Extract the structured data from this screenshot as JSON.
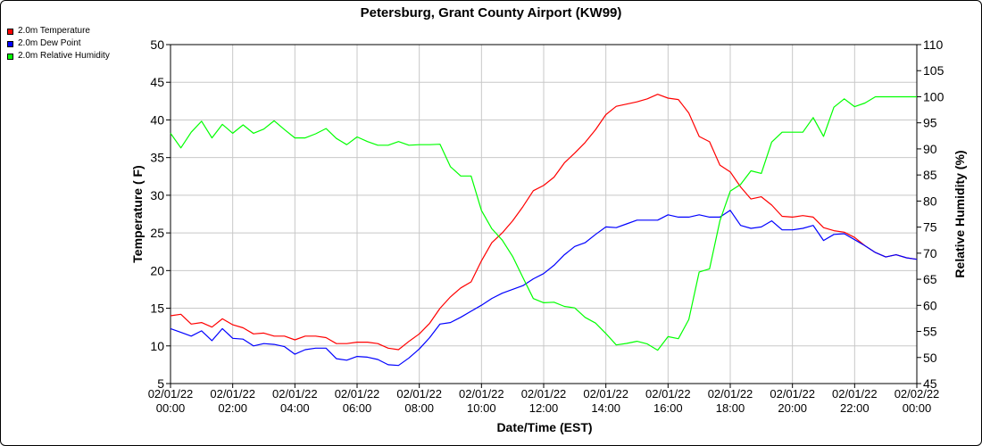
{
  "chart_data": {
    "type": "line",
    "title": "Petersburg, Grant County Airport (KW99)",
    "xlabel": "Date/Time (EST)",
    "ylabel": "Temperature ( F)",
    "y2label": "Relative Humidity (%)",
    "ylim": [
      5,
      50
    ],
    "y2lim": [
      45,
      110
    ],
    "yticks": [
      5,
      10,
      15,
      20,
      25,
      30,
      35,
      40,
      45,
      50
    ],
    "y2ticks": [
      45,
      50,
      55,
      60,
      65,
      70,
      75,
      80,
      85,
      90,
      95,
      100,
      105,
      110
    ],
    "xlim": [
      0,
      24
    ],
    "xticks": [
      {
        "x": 0,
        "date": "02/01/22",
        "time": "00:00"
      },
      {
        "x": 2,
        "date": "02/01/22",
        "time": "02:00"
      },
      {
        "x": 4,
        "date": "02/01/22",
        "time": "04:00"
      },
      {
        "x": 6,
        "date": "02/01/22",
        "time": "06:00"
      },
      {
        "x": 8,
        "date": "02/01/22",
        "time": "08:00"
      },
      {
        "x": 10,
        "date": "02/01/22",
        "time": "10:00"
      },
      {
        "x": 12,
        "date": "02/01/22",
        "time": "12:00"
      },
      {
        "x": 14,
        "date": "02/01/22",
        "time": "14:00"
      },
      {
        "x": 16,
        "date": "02/01/22",
        "time": "16:00"
      },
      {
        "x": 18,
        "date": "02/01/22",
        "time": "18:00"
      },
      {
        "x": 20,
        "date": "02/01/22",
        "time": "20:00"
      },
      {
        "x": 22,
        "date": "02/01/22",
        "time": "22:00"
      },
      {
        "x": 24,
        "date": "02/02/22",
        "time": "00:00"
      }
    ],
    "grid": true,
    "legend_position": "top-left",
    "x": [
      0,
      0.333,
      0.667,
      1,
      1.333,
      1.667,
      2,
      2.333,
      2.667,
      3,
      3.333,
      3.667,
      4,
      4.333,
      4.667,
      5,
      5.333,
      5.667,
      6,
      6.333,
      6.667,
      7,
      7.333,
      7.667,
      8,
      8.333,
      8.667,
      9,
      9.333,
      9.667,
      10,
      10.333,
      10.667,
      11,
      11.333,
      11.667,
      12,
      12.333,
      12.667,
      13,
      13.333,
      13.667,
      14,
      14.333,
      14.667,
      15,
      15.333,
      15.667,
      16,
      16.333,
      16.667,
      17,
      17.333,
      17.667,
      18,
      18.333,
      18.667,
      19,
      19.333,
      19.667,
      20,
      20.333,
      20.667,
      21,
      21.333,
      21.667,
      22,
      22.333,
      22.667,
      23,
      23.333,
      23.667,
      24
    ],
    "series": [
      {
        "name": "2.0m Temperature",
        "color": "#ff0000",
        "axis": "left",
        "values": [
          14.0,
          14.2,
          12.9,
          13.1,
          12.5,
          13.6,
          12.8,
          12.4,
          11.6,
          11.7,
          11.3,
          11.3,
          10.8,
          11.3,
          11.3,
          11.1,
          10.3,
          10.3,
          10.5,
          10.5,
          10.3,
          9.7,
          9.5,
          10.6,
          11.6,
          13.0,
          15.0,
          16.5,
          17.7,
          18.5,
          21.3,
          23.7,
          25.0,
          26.6,
          28.5,
          30.6,
          31.3,
          32.4,
          34.3,
          35.6,
          37.0,
          38.7,
          40.7,
          41.8,
          42.1,
          42.4,
          42.8,
          43.4,
          42.9,
          42.7,
          40.9,
          37.8,
          37.1,
          34.0,
          33.1,
          31.1,
          29.5,
          29.8,
          28.7,
          27.2,
          27.1,
          27.3,
          27.1,
          25.7,
          25.3,
          25.1,
          24.4,
          23.3,
          22.4,
          21.8,
          22.1,
          21.7,
          21.5
        ]
      },
      {
        "name": "2.0m Dew Point",
        "color": "#0000ff",
        "axis": "left",
        "values": [
          12.3,
          11.8,
          11.3,
          12.0,
          10.7,
          12.3,
          11.0,
          10.9,
          10.0,
          10.3,
          10.2,
          9.9,
          8.9,
          9.5,
          9.7,
          9.7,
          8.3,
          8.1,
          8.6,
          8.5,
          8.2,
          7.5,
          7.4,
          8.4,
          9.6,
          11.1,
          12.9,
          13.1,
          13.8,
          14.6,
          15.4,
          16.3,
          17.0,
          17.5,
          18.0,
          18.9,
          19.6,
          20.7,
          22.1,
          23.2,
          23.7,
          24.8,
          25.8,
          25.7,
          26.2,
          26.7,
          26.7,
          26.7,
          27.4,
          27.1,
          27.1,
          27.4,
          27.1,
          27.1,
          28.0,
          26.0,
          25.6,
          25.8,
          26.6,
          25.4,
          25.4,
          25.6,
          26.0,
          24.0,
          24.8,
          24.9,
          24.1,
          23.3,
          22.4,
          21.8,
          22.1,
          21.7,
          21.5
        ]
      },
      {
        "name": "2.0m Relative Humidity",
        "color": "#00ff00",
        "axis": "right",
        "values": [
          93.0,
          90.2,
          93.2,
          95.3,
          92.1,
          94.7,
          93.0,
          94.6,
          93.0,
          93.8,
          95.4,
          93.7,
          92.1,
          92.1,
          92.9,
          93.9,
          92.0,
          90.8,
          92.3,
          91.4,
          90.7,
          90.7,
          91.4,
          90.7,
          90.8,
          90.8,
          90.9,
          86.6,
          84.8,
          84.8,
          78.2,
          74.7,
          72.5,
          69.4,
          65.3,
          61.3,
          60.5,
          60.6,
          59.8,
          59.5,
          57.7,
          56.6,
          54.6,
          52.4,
          52.7,
          53.1,
          52.6,
          51.4,
          54.0,
          53.6,
          57.3,
          66.4,
          67.0,
          76.2,
          81.9,
          83.2,
          85.8,
          85.3,
          91.3,
          93.2,
          93.2,
          93.2,
          96.0,
          92.4,
          98.0,
          99.6,
          98.1,
          98.8,
          100.0,
          100.0,
          100.0,
          100.0,
          100.0
        ]
      }
    ]
  }
}
